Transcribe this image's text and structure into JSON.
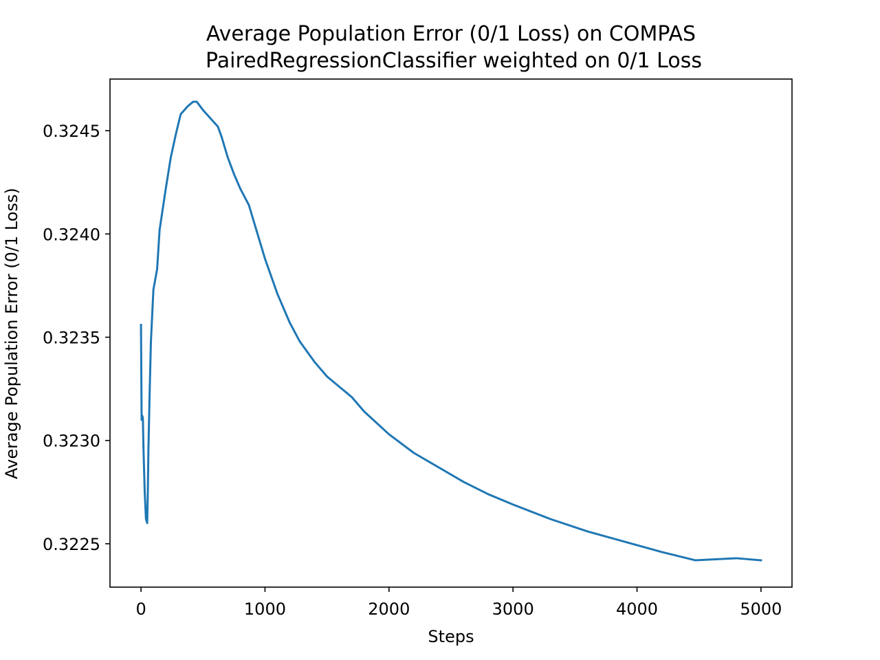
{
  "chart_data": {
    "type": "line",
    "title": "Average Population Error (0/1 Loss) on COMPAS",
    "subtitle": "PairedRegressionClassifier weighted on 0/1 Loss",
    "xlabel": "Steps",
    "ylabel": "Average Population Error (0/1 Loss)",
    "xlim": [
      -250,
      5250
    ],
    "ylim": [
      0.32229,
      0.32475
    ],
    "xticks": [
      0,
      1000,
      2000,
      3000,
      4000,
      5000
    ],
    "xtick_labels": [
      "0",
      "1000",
      "2000",
      "3000",
      "4000",
      "5000"
    ],
    "yticks": [
      0.3225,
      0.323,
      0.3235,
      0.324,
      0.3245
    ],
    "ytick_labels": [
      "0.3225",
      "0.3230",
      "0.3235",
      "0.3240",
      "0.3245"
    ],
    "grid": false,
    "line_color": "#1f77b4",
    "series": [
      {
        "x": [
          0,
          5,
          10,
          15,
          20,
          30,
          40,
          50,
          55,
          60,
          70,
          80,
          100,
          130,
          150,
          180,
          200,
          240,
          280,
          320,
          380,
          420,
          450,
          500,
          560,
          620,
          650,
          700,
          750,
          800,
          870,
          900,
          1000,
          1100,
          1200,
          1280,
          1400,
          1500,
          1600,
          1700,
          1800,
          2000,
          2200,
          2400,
          2600,
          2800,
          3000,
          3300,
          3600,
          3900,
          4200,
          4470,
          4800,
          5000
        ],
        "y": [
          0.32356,
          0.3231,
          0.32312,
          0.32311,
          0.32296,
          0.32275,
          0.32262,
          0.3226,
          0.32275,
          0.32296,
          0.32324,
          0.32348,
          0.32373,
          0.32383,
          0.32402,
          0.32414,
          0.32422,
          0.32437,
          0.32448,
          0.32458,
          0.32462,
          0.32464,
          0.32464,
          0.3246,
          0.32456,
          0.32452,
          0.32447,
          0.32437,
          0.32429,
          0.32422,
          0.32414,
          0.32408,
          0.32388,
          0.32371,
          0.32357,
          0.32348,
          0.32338,
          0.32331,
          0.32326,
          0.32321,
          0.32314,
          0.32303,
          0.32294,
          0.32287,
          0.3228,
          0.32274,
          0.32269,
          0.32262,
          0.32256,
          0.32251,
          0.32246,
          0.32242,
          0.32243,
          0.32242
        ]
      }
    ]
  }
}
